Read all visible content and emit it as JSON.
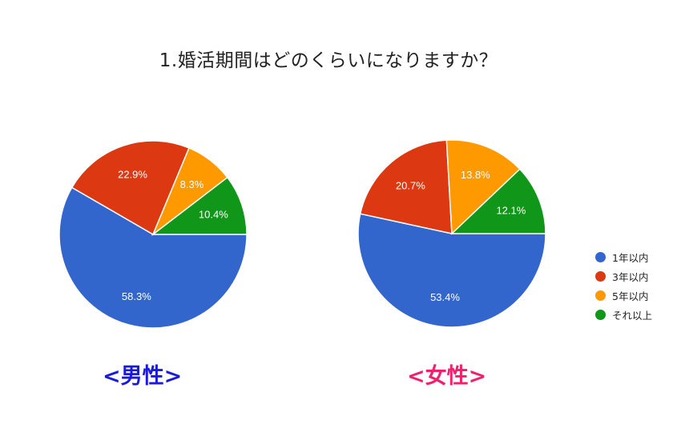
{
  "title": "1.婚活期間はどのくらいになりますか？",
  "legend": [
    {
      "label": "1年以内",
      "color": "#3366cc"
    },
    {
      "label": "3年以内",
      "color": "#dc3912"
    },
    {
      "label": "5年以内",
      "color": "#ff9900"
    },
    {
      "label": "それ以上",
      "color": "#109618"
    }
  ],
  "groups": [
    {
      "label": "<男性>",
      "color": "#1a1adb"
    },
    {
      "label": "<女性>",
      "color": "#f0206e"
    }
  ],
  "chart_data": [
    {
      "type": "pie",
      "title": "<男性>",
      "categories": [
        "1年以内",
        "3年以内",
        "5年以内",
        "それ以上"
      ],
      "values": [
        58.3,
        22.9,
        8.3,
        10.4
      ],
      "labels": [
        "58.3%",
        "22.9%",
        "8.3%",
        "10.4%"
      ],
      "colors": [
        "#3366cc",
        "#dc3912",
        "#ff9900",
        "#109618"
      ],
      "start_angle": "3 o'clock, clockwise",
      "legend_position": "right"
    },
    {
      "type": "pie",
      "title": "<女性>",
      "categories": [
        "1年以内",
        "3年以内",
        "5年以内",
        "それ以上"
      ],
      "values": [
        53.4,
        20.7,
        13.8,
        12.1
      ],
      "labels": [
        "53.4%",
        "20.7%",
        "13.8%",
        "12.1%"
      ],
      "colors": [
        "#3366cc",
        "#dc3912",
        "#ff9900",
        "#109618"
      ],
      "start_angle": "3 o'clock, clockwise",
      "legend_position": "right"
    }
  ]
}
